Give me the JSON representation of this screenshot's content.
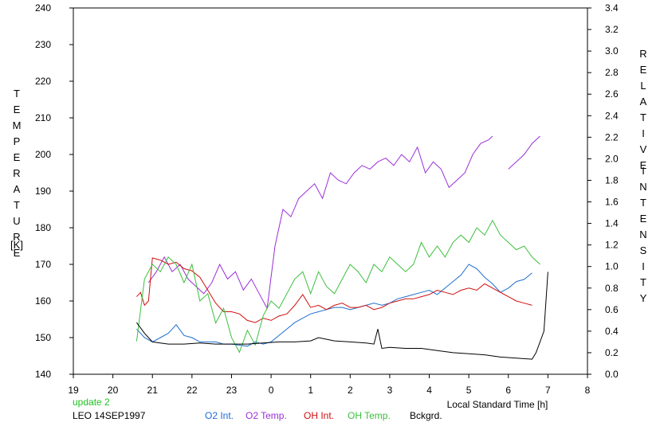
{
  "chart_data": {
    "type": "line",
    "xlabel": "Local Standard Time [h]",
    "ylabel": "TEMPERATURE",
    "ylabel_unit": "[K]",
    "y2label": "RELATIVE",
    "y2label_2": "INTENSITY",
    "xlim": [
      19,
      32
    ],
    "ylim": [
      140,
      240
    ],
    "y2lim": [
      0.0,
      3.4
    ],
    "x_ticks": [
      "19",
      "20",
      "21",
      "22",
      "23",
      "0",
      "1",
      "2",
      "3",
      "4",
      "5",
      "6",
      "7",
      "8"
    ],
    "y_ticks": [
      "140",
      "150",
      "160",
      "170",
      "180",
      "190",
      "200",
      "210",
      "220",
      "230",
      "240"
    ],
    "y2_ticks": [
      "0.0",
      "0.2",
      "0.4",
      "0.6",
      "0.8",
      "1.0",
      "1.2",
      "1.4",
      "1.6",
      "1.8",
      "2.0",
      "2.2",
      "2.4",
      "2.6",
      "2.8",
      "3.0",
      "3.2",
      "3.4"
    ],
    "grid": false,
    "series": [
      {
        "name": "O2 Int.",
        "color": "#1f6fd1",
        "axis": "right",
        "x": [
          20.6,
          20.8,
          21.0,
          21.2,
          21.4,
          21.6,
          21.8,
          22.0,
          22.2,
          22.4,
          22.6,
          22.8,
          23.0,
          23.2,
          23.4,
          23.6,
          23.8,
          24.0,
          24.2,
          24.4,
          24.6,
          24.8,
          25.0,
          25.2,
          25.4,
          25.6,
          25.8,
          26.0,
          26.2,
          26.4,
          26.6,
          26.8,
          27.0,
          27.2,
          27.4,
          27.6,
          27.8,
          28.0,
          28.2,
          28.4,
          28.6,
          28.8,
          29.0,
          29.2,
          29.4,
          29.6,
          29.8,
          30.0,
          30.2,
          30.4,
          30.6
        ],
        "y": [
          0.42,
          0.34,
          0.3,
          0.34,
          0.38,
          0.46,
          0.36,
          0.34,
          0.3,
          0.3,
          0.3,
          0.28,
          0.28,
          0.27,
          0.26,
          0.3,
          0.28,
          0.3,
          0.36,
          0.42,
          0.48,
          0.52,
          0.56,
          0.58,
          0.6,
          0.62,
          0.62,
          0.6,
          0.62,
          0.64,
          0.66,
          0.64,
          0.66,
          0.7,
          0.72,
          0.74,
          0.76,
          0.78,
          0.74,
          0.8,
          0.86,
          0.92,
          1.02,
          0.98,
          0.9,
          0.84,
          0.76,
          0.8,
          0.86,
          0.88,
          0.94
        ]
      },
      {
        "name": "O2 Temp.",
        "color": "#9b30d9",
        "axis": "left",
        "x": [
          20.9,
          21.1,
          21.3,
          21.5,
          21.7,
          21.9,
          22.1,
          22.3,
          22.5,
          22.7,
          22.9,
          23.1,
          23.3,
          23.5,
          23.7,
          23.9,
          24.1,
          24.3,
          24.5,
          24.7,
          24.9,
          25.1,
          25.3,
          25.5,
          25.7,
          25.9,
          26.1,
          26.3,
          26.5,
          26.7,
          26.9,
          27.1,
          27.3,
          27.5,
          27.7,
          27.9,
          28.1,
          28.3,
          28.5,
          28.7,
          28.9,
          29.1,
          29.3,
          29.5,
          29.6,
          29.8,
          30.0,
          30.2,
          30.4,
          30.6,
          30.8
        ],
        "y": [
          165,
          168,
          172,
          168,
          170,
          166,
          164,
          162,
          165,
          170,
          166,
          168,
          163,
          166,
          162,
          158,
          175,
          185,
          183,
          188,
          190,
          192,
          188,
          195,
          193,
          192,
          195,
          197,
          196,
          198,
          199,
          197,
          200,
          198,
          202,
          195,
          198,
          196,
          191,
          193,
          195,
          200,
          203,
          204,
          205,
          null,
          196,
          198,
          200,
          203,
          205
        ]
      },
      {
        "name": "OH Int.",
        "color": "#d01010",
        "axis": "right",
        "x": [
          20.6,
          20.7,
          20.8,
          20.9,
          21.0,
          21.2,
          21.4,
          21.6,
          21.8,
          22.0,
          22.2,
          22.4,
          22.6,
          22.8,
          23.0,
          23.2,
          23.4,
          23.6,
          23.8,
          24.0,
          24.2,
          24.4,
          24.6,
          24.8,
          25.0,
          25.2,
          25.4,
          25.6,
          25.8,
          26.0,
          26.2,
          26.4,
          26.6,
          26.8,
          27.0,
          27.2,
          27.4,
          27.6,
          27.8,
          28.0,
          28.2,
          28.4,
          28.6,
          28.8,
          29.0,
          29.2,
          29.4,
          29.6,
          29.8,
          30.0,
          30.2,
          30.4,
          30.6
        ],
        "y": [
          0.72,
          0.76,
          0.64,
          0.68,
          1.08,
          1.06,
          1.02,
          1.04,
          0.98,
          0.96,
          0.9,
          0.78,
          0.66,
          0.58,
          0.58,
          0.56,
          0.5,
          0.48,
          0.52,
          0.5,
          0.54,
          0.56,
          0.64,
          0.74,
          0.62,
          0.64,
          0.6,
          0.64,
          0.66,
          0.62,
          0.62,
          0.64,
          0.6,
          0.62,
          0.66,
          0.68,
          0.7,
          0.7,
          0.72,
          0.74,
          0.78,
          0.76,
          0.74,
          0.78,
          0.8,
          0.78,
          0.84,
          0.8,
          0.76,
          0.72,
          0.68,
          0.66,
          0.64
        ]
      },
      {
        "name": "OH Temp.",
        "color": "#3cbf3c",
        "axis": "left",
        "x": [
          20.6,
          20.8,
          21.0,
          21.2,
          21.4,
          21.6,
          21.8,
          22.0,
          22.2,
          22.4,
          22.6,
          22.8,
          23.0,
          23.2,
          23.4,
          23.6,
          23.8,
          24.0,
          24.2,
          24.4,
          24.6,
          24.8,
          25.0,
          25.2,
          25.4,
          25.6,
          25.8,
          26.0,
          26.2,
          26.4,
          26.6,
          26.8,
          27.0,
          27.2,
          27.4,
          27.6,
          27.8,
          28.0,
          28.2,
          28.4,
          28.6,
          28.8,
          29.0,
          29.2,
          29.4,
          29.6,
          29.8,
          30.0,
          30.2,
          30.4,
          30.6,
          30.8
        ],
        "y": [
          149,
          166,
          170,
          168,
          172,
          170,
          165,
          170,
          160,
          162,
          154,
          158,
          150,
          146,
          152,
          148,
          156,
          160,
          158,
          162,
          166,
          168,
          162,
          168,
          164,
          162,
          166,
          170,
          168,
          165,
          170,
          168,
          172,
          170,
          168,
          170,
          176,
          172,
          175,
          172,
          176,
          178,
          176,
          180,
          178,
          182,
          178,
          176,
          174,
          175,
          172,
          170
        ]
      },
      {
        "name": "Bckgrd.",
        "color": "#000000",
        "axis": "right",
        "x": [
          20.6,
          20.8,
          21.0,
          21.4,
          21.8,
          22.2,
          22.6,
          23.0,
          23.4,
          23.8,
          24.2,
          24.6,
          25.0,
          25.2,
          25.6,
          26.0,
          26.4,
          26.6,
          26.7,
          26.8,
          27.0,
          27.4,
          27.8,
          28.2,
          28.6,
          29.0,
          29.4,
          29.8,
          30.2,
          30.6,
          30.7,
          30.9,
          31.0
        ],
        "y": [
          0.48,
          0.38,
          0.3,
          0.28,
          0.28,
          0.29,
          0.28,
          0.28,
          0.28,
          0.29,
          0.3,
          0.3,
          0.31,
          0.34,
          0.31,
          0.3,
          0.29,
          0.28,
          0.42,
          0.24,
          0.25,
          0.24,
          0.24,
          0.22,
          0.2,
          0.19,
          0.18,
          0.16,
          0.15,
          0.14,
          0.2,
          0.4,
          0.95
        ]
      }
    ]
  },
  "footer": {
    "update": "update 2",
    "station": "LEO 14SEP1997",
    "legend": [
      "O2 Int.",
      "O2 Temp.",
      "OH Int.",
      "OH Temp.",
      "Bckgrd."
    ]
  },
  "colors": {
    "update": "#22c022",
    "station": "#000000",
    "legend": [
      "#1f6fd1",
      "#9b30d9",
      "#d01010",
      "#3cbf3c",
      "#000000"
    ]
  }
}
